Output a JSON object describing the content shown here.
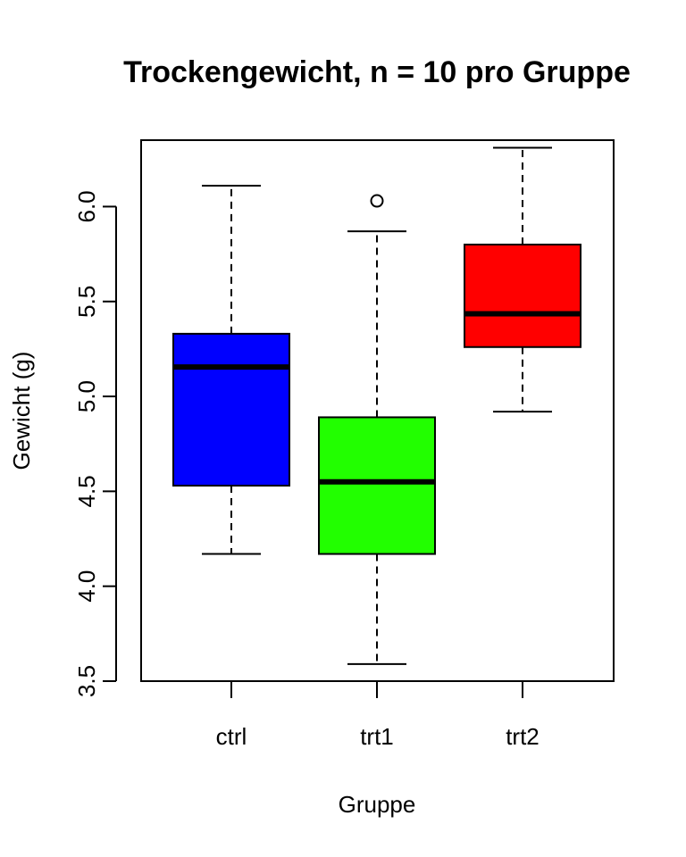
{
  "chart_data": {
    "type": "boxplot",
    "title": "Trockengewicht, n = 10 pro Gruppe",
    "xlabel": "Gruppe",
    "ylabel": "Gewicht (g)",
    "ylim": [
      3.5,
      6.35
    ],
    "y_ticks": [
      3.5,
      4.0,
      4.5,
      5.0,
      5.5,
      6.0
    ],
    "y_tick_labels": [
      "3.5",
      "4.0",
      "4.5",
      "5.0",
      "5.5",
      "6.0"
    ],
    "categories": [
      "ctrl",
      "trt1",
      "trt2"
    ],
    "groups": [
      {
        "name": "ctrl",
        "color": "#0000ff",
        "whisker_low": 4.17,
        "q1": 4.53,
        "median": 5.155,
        "q3": 5.33,
        "whisker_high": 6.11,
        "outliers": []
      },
      {
        "name": "trt1",
        "color": "#22ff00",
        "whisker_low": 3.59,
        "q1": 4.17,
        "median": 4.55,
        "q3": 4.89,
        "whisker_high": 5.87,
        "outliers": [
          6.03
        ]
      },
      {
        "name": "trt2",
        "color": "#ff0000",
        "whisker_low": 4.92,
        "q1": 5.26,
        "median": 5.435,
        "q3": 5.8,
        "whisker_high": 6.31,
        "outliers": []
      }
    ],
    "grid": false,
    "legend": "none"
  }
}
